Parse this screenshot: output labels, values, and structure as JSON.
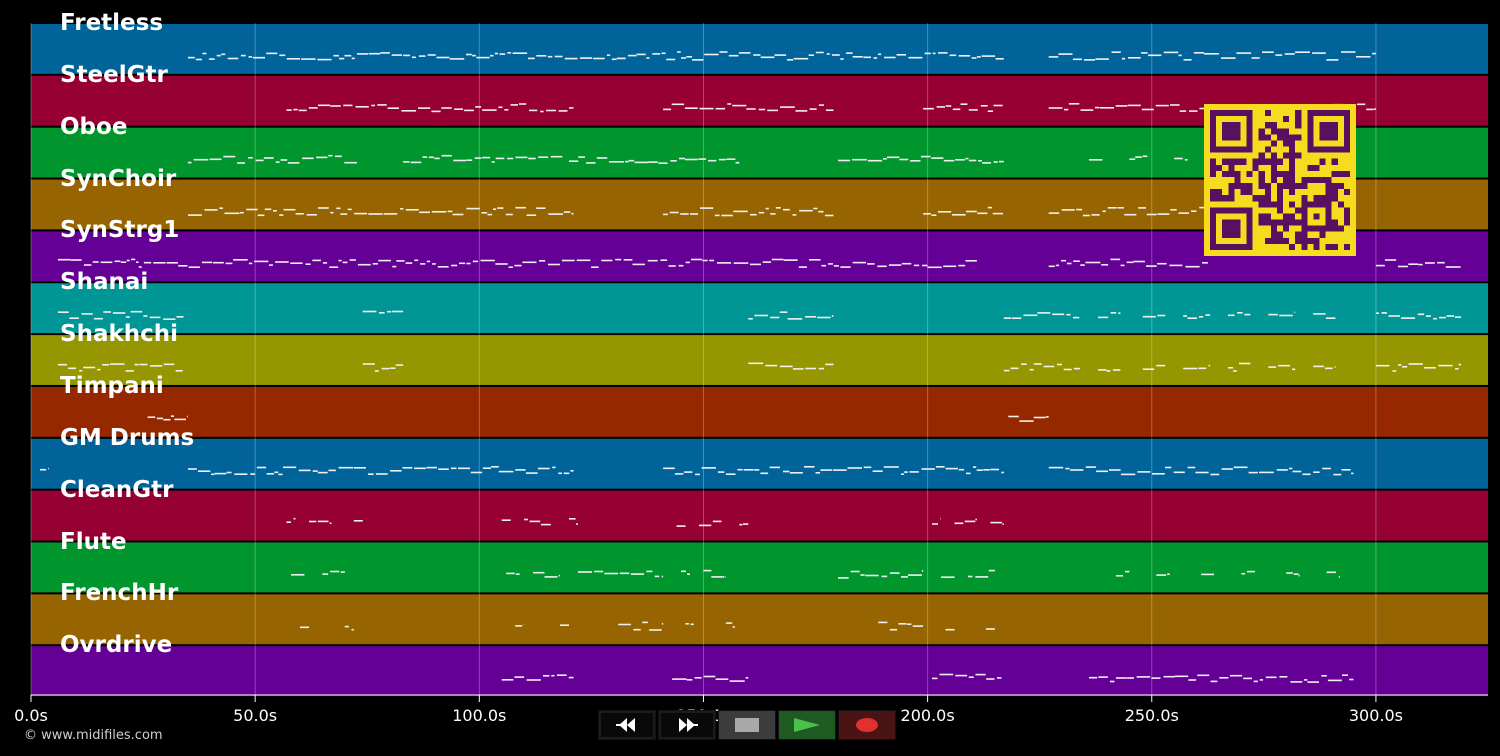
{
  "timeline": {
    "x_min": 0,
    "x_max": 325,
    "ticks": [
      {
        "value": 0,
        "label": "0.0s"
      },
      {
        "value": 50,
        "label": "50.0s"
      },
      {
        "value": 100,
        "label": "100.0s"
      },
      {
        "value": 150,
        "label": "150.0s"
      },
      {
        "value": 200,
        "label": "200.0s"
      },
      {
        "value": 250,
        "label": "250.0s"
      },
      {
        "value": 300,
        "label": "300.0s"
      }
    ]
  },
  "tracks": [
    {
      "name": "Fretless",
      "color": "#00649b",
      "segments": [
        [
          35,
          217
        ],
        [
          227,
          300
        ]
      ]
    },
    {
      "name": "SteelGtr",
      "color": "#960032",
      "segments": [
        [
          57,
          121
        ],
        [
          141,
          179
        ],
        [
          199,
          217
        ],
        [
          227,
          300
        ]
      ]
    },
    {
      "name": "Oboe",
      "color": "#00962d",
      "segments": [
        [
          35,
          73
        ],
        [
          83,
          119
        ],
        [
          120,
          158
        ],
        [
          180,
          217
        ],
        [
          236,
          239
        ],
        [
          245,
          249
        ],
        [
          255,
          258
        ]
      ]
    },
    {
      "name": "SynChoir",
      "color": "#966400",
      "segments": [
        [
          35,
          121
        ],
        [
          141,
          179
        ],
        [
          199,
          217
        ],
        [
          227,
          263
        ]
      ]
    },
    {
      "name": "SynStrg1",
      "color": "#640096",
      "segments": [
        [
          6,
          24
        ],
        [
          24,
          211
        ],
        [
          227,
          263
        ],
        [
          300,
          319
        ]
      ]
    },
    {
      "name": "Shanai",
      "color": "#009696",
      "segments": [
        [
          6,
          34
        ],
        [
          74,
          83
        ],
        [
          160,
          179
        ],
        [
          217,
          234
        ],
        [
          238,
          243
        ],
        [
          248,
          253
        ],
        [
          257,
          263
        ],
        [
          267,
          272
        ],
        [
          276,
          282
        ],
        [
          286,
          291
        ],
        [
          300,
          319
        ]
      ]
    },
    {
      "name": "Shakhchi",
      "color": "#969600",
      "segments": [
        [
          6,
          34
        ],
        [
          74,
          83
        ],
        [
          160,
          179
        ],
        [
          217,
          234
        ],
        [
          238,
          243
        ],
        [
          248,
          253
        ],
        [
          257,
          263
        ],
        [
          267,
          272
        ],
        [
          276,
          282
        ],
        [
          286,
          291
        ],
        [
          300,
          319
        ]
      ]
    },
    {
      "name": "Timpani",
      "color": "#962800",
      "segments": [
        [
          26,
          35
        ],
        [
          218,
          227
        ]
      ]
    },
    {
      "name": "GM Drums",
      "color": "#00649b",
      "segments": [
        [
          2,
          4
        ],
        [
          35,
          121
        ],
        [
          141,
          217
        ],
        [
          227,
          295
        ]
      ]
    },
    {
      "name": "CleanGtr",
      "color": "#960032",
      "segments": [
        [
          57,
          59
        ],
        [
          62,
          67
        ],
        [
          72,
          74
        ],
        [
          105,
          107
        ],
        [
          110,
          116
        ],
        [
          120,
          122
        ],
        [
          144,
          146
        ],
        [
          149,
          154
        ],
        [
          158,
          160
        ],
        [
          201,
          203
        ],
        [
          206,
          211
        ],
        [
          214,
          217
        ]
      ]
    },
    {
      "name": "Flute",
      "color": "#00962d",
      "segments": [
        [
          58,
          61
        ],
        [
          65,
          70
        ],
        [
          106,
          109
        ],
        [
          112,
          118
        ],
        [
          122,
          141
        ],
        [
          145,
          147
        ],
        [
          150,
          155
        ],
        [
          180,
          199
        ],
        [
          203,
          206
        ],
        [
          209,
          215
        ],
        [
          242,
          245
        ],
        [
          251,
          254
        ],
        [
          261,
          264
        ],
        [
          270,
          273
        ],
        [
          280,
          283
        ],
        [
          289,
          292
        ]
      ]
    },
    {
      "name": "FrenchHr",
      "color": "#966400",
      "segments": [
        [
          60,
          62
        ],
        [
          70,
          72
        ],
        [
          108,
          110
        ],
        [
          118,
          120
        ],
        [
          131,
          141
        ],
        [
          146,
          148
        ],
        [
          155,
          157
        ],
        [
          189,
          199
        ],
        [
          204,
          206
        ],
        [
          213,
          215
        ]
      ]
    },
    {
      "name": "Ovrdrive",
      "color": "#640096",
      "segments": [
        [
          105,
          121
        ],
        [
          143,
          160
        ],
        [
          201,
          217
        ],
        [
          236,
          295
        ]
      ]
    }
  ],
  "transport": {
    "rewind_icon": "rewind-icon",
    "fast_forward_icon": "fast-forward-icon",
    "stop_icon": "stop-icon",
    "play_icon": "play-icon",
    "record_icon": "record-icon",
    "play_color": "#4cbf4c",
    "record_color": "#e03030"
  },
  "qr": {
    "foreground": "#5a1060",
    "background": "#f5dc1e",
    "icon": "qr-code-icon"
  },
  "footer": {
    "copyright": "© www.midifiles.com"
  }
}
